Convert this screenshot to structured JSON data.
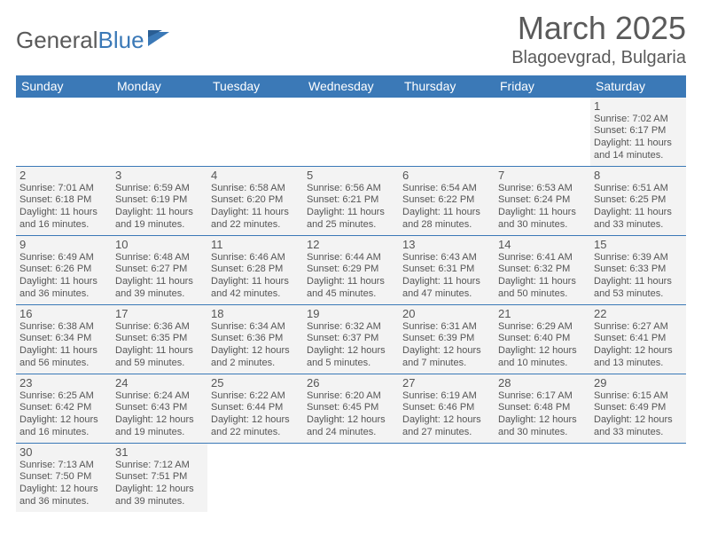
{
  "logo": {
    "text1": "General",
    "text2": "Blue"
  },
  "title": "March 2025",
  "location": "Blagoevgrad, Bulgaria",
  "colors": {
    "header_bg": "#3b79b7",
    "header_text": "#ffffff",
    "cell_bg": "#f3f3f3",
    "border": "#3b79b7",
    "text": "#555555"
  },
  "weekdays": [
    "Sunday",
    "Monday",
    "Tuesday",
    "Wednesday",
    "Thursday",
    "Friday",
    "Saturday"
  ],
  "weeks": [
    [
      null,
      null,
      null,
      null,
      null,
      null,
      {
        "n": "1",
        "sr": "Sunrise: 7:02 AM",
        "ss": "Sunset: 6:17 PM",
        "dl": "Daylight: 11 hours and 14 minutes."
      }
    ],
    [
      {
        "n": "2",
        "sr": "Sunrise: 7:01 AM",
        "ss": "Sunset: 6:18 PM",
        "dl": "Daylight: 11 hours and 16 minutes."
      },
      {
        "n": "3",
        "sr": "Sunrise: 6:59 AM",
        "ss": "Sunset: 6:19 PM",
        "dl": "Daylight: 11 hours and 19 minutes."
      },
      {
        "n": "4",
        "sr": "Sunrise: 6:58 AM",
        "ss": "Sunset: 6:20 PM",
        "dl": "Daylight: 11 hours and 22 minutes."
      },
      {
        "n": "5",
        "sr": "Sunrise: 6:56 AM",
        "ss": "Sunset: 6:21 PM",
        "dl": "Daylight: 11 hours and 25 minutes."
      },
      {
        "n": "6",
        "sr": "Sunrise: 6:54 AM",
        "ss": "Sunset: 6:22 PM",
        "dl": "Daylight: 11 hours and 28 minutes."
      },
      {
        "n": "7",
        "sr": "Sunrise: 6:53 AM",
        "ss": "Sunset: 6:24 PM",
        "dl": "Daylight: 11 hours and 30 minutes."
      },
      {
        "n": "8",
        "sr": "Sunrise: 6:51 AM",
        "ss": "Sunset: 6:25 PM",
        "dl": "Daylight: 11 hours and 33 minutes."
      }
    ],
    [
      {
        "n": "9",
        "sr": "Sunrise: 6:49 AM",
        "ss": "Sunset: 6:26 PM",
        "dl": "Daylight: 11 hours and 36 minutes."
      },
      {
        "n": "10",
        "sr": "Sunrise: 6:48 AM",
        "ss": "Sunset: 6:27 PM",
        "dl": "Daylight: 11 hours and 39 minutes."
      },
      {
        "n": "11",
        "sr": "Sunrise: 6:46 AM",
        "ss": "Sunset: 6:28 PM",
        "dl": "Daylight: 11 hours and 42 minutes."
      },
      {
        "n": "12",
        "sr": "Sunrise: 6:44 AM",
        "ss": "Sunset: 6:29 PM",
        "dl": "Daylight: 11 hours and 45 minutes."
      },
      {
        "n": "13",
        "sr": "Sunrise: 6:43 AM",
        "ss": "Sunset: 6:31 PM",
        "dl": "Daylight: 11 hours and 47 minutes."
      },
      {
        "n": "14",
        "sr": "Sunrise: 6:41 AM",
        "ss": "Sunset: 6:32 PM",
        "dl": "Daylight: 11 hours and 50 minutes."
      },
      {
        "n": "15",
        "sr": "Sunrise: 6:39 AM",
        "ss": "Sunset: 6:33 PM",
        "dl": "Daylight: 11 hours and 53 minutes."
      }
    ],
    [
      {
        "n": "16",
        "sr": "Sunrise: 6:38 AM",
        "ss": "Sunset: 6:34 PM",
        "dl": "Daylight: 11 hours and 56 minutes."
      },
      {
        "n": "17",
        "sr": "Sunrise: 6:36 AM",
        "ss": "Sunset: 6:35 PM",
        "dl": "Daylight: 11 hours and 59 minutes."
      },
      {
        "n": "18",
        "sr": "Sunrise: 6:34 AM",
        "ss": "Sunset: 6:36 PM",
        "dl": "Daylight: 12 hours and 2 minutes."
      },
      {
        "n": "19",
        "sr": "Sunrise: 6:32 AM",
        "ss": "Sunset: 6:37 PM",
        "dl": "Daylight: 12 hours and 5 minutes."
      },
      {
        "n": "20",
        "sr": "Sunrise: 6:31 AM",
        "ss": "Sunset: 6:39 PM",
        "dl": "Daylight: 12 hours and 7 minutes."
      },
      {
        "n": "21",
        "sr": "Sunrise: 6:29 AM",
        "ss": "Sunset: 6:40 PM",
        "dl": "Daylight: 12 hours and 10 minutes."
      },
      {
        "n": "22",
        "sr": "Sunrise: 6:27 AM",
        "ss": "Sunset: 6:41 PM",
        "dl": "Daylight: 12 hours and 13 minutes."
      }
    ],
    [
      {
        "n": "23",
        "sr": "Sunrise: 6:25 AM",
        "ss": "Sunset: 6:42 PM",
        "dl": "Daylight: 12 hours and 16 minutes."
      },
      {
        "n": "24",
        "sr": "Sunrise: 6:24 AM",
        "ss": "Sunset: 6:43 PM",
        "dl": "Daylight: 12 hours and 19 minutes."
      },
      {
        "n": "25",
        "sr": "Sunrise: 6:22 AM",
        "ss": "Sunset: 6:44 PM",
        "dl": "Daylight: 12 hours and 22 minutes."
      },
      {
        "n": "26",
        "sr": "Sunrise: 6:20 AM",
        "ss": "Sunset: 6:45 PM",
        "dl": "Daylight: 12 hours and 24 minutes."
      },
      {
        "n": "27",
        "sr": "Sunrise: 6:19 AM",
        "ss": "Sunset: 6:46 PM",
        "dl": "Daylight: 12 hours and 27 minutes."
      },
      {
        "n": "28",
        "sr": "Sunrise: 6:17 AM",
        "ss": "Sunset: 6:48 PM",
        "dl": "Daylight: 12 hours and 30 minutes."
      },
      {
        "n": "29",
        "sr": "Sunrise: 6:15 AM",
        "ss": "Sunset: 6:49 PM",
        "dl": "Daylight: 12 hours and 33 minutes."
      }
    ],
    [
      {
        "n": "30",
        "sr": "Sunrise: 7:13 AM",
        "ss": "Sunset: 7:50 PM",
        "dl": "Daylight: 12 hours and 36 minutes."
      },
      {
        "n": "31",
        "sr": "Sunrise: 7:12 AM",
        "ss": "Sunset: 7:51 PM",
        "dl": "Daylight: 12 hours and 39 minutes."
      },
      null,
      null,
      null,
      null,
      null
    ]
  ]
}
